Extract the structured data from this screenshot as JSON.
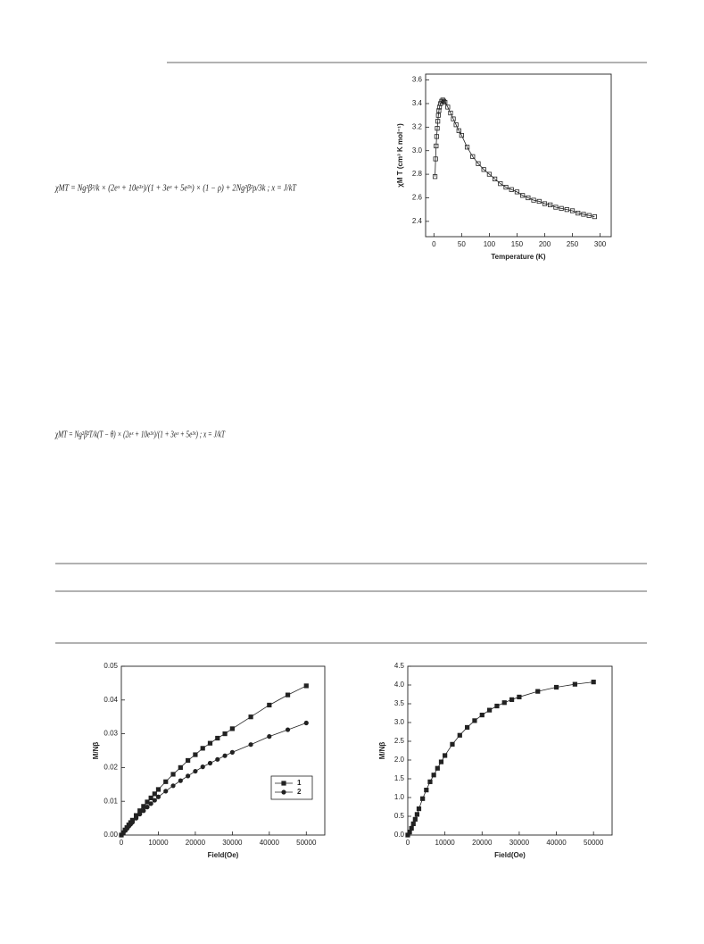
{
  "equations": [
    "χMT = Ng²β²/k × (2eˣ + 10e³ˣ)/(1 + 3eˣ + 5e³ˣ) × (1 − ρ) + 2Ng²β²ρ/3k ; x = J/kT",
    "χMT = Ng²β²T/k(T − θ) × (2eˣ + 10e³ˣ)/(1 + 3eˣ + 5e³ˣ) ; x = J/kT"
  ],
  "chart_data": [
    {
      "type": "scatter",
      "x_label": "Temperature (K)",
      "y_label": "χM T (cm³ K mol⁻¹)",
      "x": [
        2,
        3,
        4,
        5,
        6,
        7,
        8,
        9,
        10,
        12,
        14,
        16,
        18,
        20,
        25,
        30,
        35,
        40,
        45,
        50,
        60,
        70,
        80,
        90,
        100,
        110,
        120,
        130,
        140,
        150,
        160,
        170,
        180,
        190,
        200,
        210,
        220,
        230,
        240,
        250,
        260,
        270,
        280,
        290
      ],
      "series": [
        {
          "color": "#222222",
          "marker": "square",
          "marker_fill": "none",
          "line": true,
          "values": [
            2.78,
            2.93,
            3.04,
            3.12,
            3.19,
            3.25,
            3.3,
            3.34,
            3.37,
            3.4,
            3.42,
            3.43,
            3.42,
            3.41,
            3.37,
            3.32,
            3.27,
            3.22,
            3.17,
            3.13,
            3.03,
            2.95,
            2.89,
            2.84,
            2.8,
            2.76,
            2.72,
            2.69,
            2.67,
            2.65,
            2.62,
            2.6,
            2.58,
            2.57,
            2.55,
            2.54,
            2.52,
            2.51,
            2.5,
            2.49,
            2.47,
            2.46,
            2.45,
            2.44
          ]
        }
      ],
      "xlim": [
        -15,
        320
      ],
      "xticks": [
        0,
        50,
        100,
        150,
        200,
        250,
        300
      ],
      "ylim": [
        2.27,
        3.65
      ],
      "yticks": [
        2.4,
        2.6,
        2.8,
        {
          "value": 3,
          "label": "3.0"
        },
        3.2,
        3.4,
        3.6
      ]
    },
    {
      "type": "line",
      "x_label": "Field(Oe)",
      "y_label": "M/Nβ",
      "legend": "lower right",
      "x": [
        0,
        500,
        1000,
        1500,
        2000,
        2500,
        3000,
        4000,
        5000,
        6000,
        7000,
        8000,
        9000,
        10000,
        12000,
        14000,
        16000,
        18000,
        20000,
        22000,
        24000,
        26000,
        28000,
        30000,
        35000,
        40000,
        45000,
        50000
      ],
      "series": [
        {
          "name": "1",
          "color": "#222222",
          "marker": "square",
          "values": [
            0,
            0.0007,
            0.0015,
            0.0022,
            0.003,
            0.0037,
            0.0044,
            0.0058,
            0.0072,
            0.0085,
            0.0098,
            0.011,
            0.0122,
            0.0135,
            0.0158,
            0.018,
            0.02,
            0.0221,
            0.0238,
            0.0257,
            0.0272,
            0.0287,
            0.03,
            0.0315,
            0.035,
            0.0385,
            0.0415,
            0.0442
          ]
        },
        {
          "name": "2",
          "color": "#222222",
          "marker": "circle",
          "values": [
            0,
            0.0006,
            0.0013,
            0.0019,
            0.0026,
            0.0032,
            0.0038,
            0.005,
            0.0062,
            0.0072,
            0.0083,
            0.0093,
            0.0103,
            0.0113,
            0.013,
            0.0146,
            0.0161,
            0.0175,
            0.0189,
            0.0202,
            0.0213,
            0.0224,
            0.0235,
            0.0245,
            0.0268,
            0.0292,
            0.0312,
            0.0332
          ]
        }
      ],
      "xlim": [
        0,
        55000
      ],
      "xticks": [
        0,
        10000,
        20000,
        30000,
        40000,
        50000
      ],
      "ylim": [
        0,
        0.05
      ],
      "yticks": [
        {
          "value": 0,
          "label": "0.00"
        },
        0.01,
        0.02,
        0.03,
        0.04,
        0.05
      ]
    },
    {
      "type": "line",
      "x_label": "Field(Oe)",
      "y_label": "M/Nβ",
      "x": [
        0,
        500,
        1000,
        1500,
        2000,
        2500,
        3000,
        4000,
        5000,
        6000,
        7000,
        8000,
        9000,
        10000,
        12000,
        14000,
        16000,
        18000,
        20000,
        22000,
        24000,
        26000,
        28000,
        30000,
        35000,
        40000,
        45000,
        50000
      ],
      "series": [
        {
          "color": "#222222",
          "marker": "square",
          "values": [
            0,
            0.08,
            0.18,
            0.3,
            0.42,
            0.55,
            0.7,
            0.97,
            1.2,
            1.42,
            1.6,
            1.78,
            1.95,
            2.12,
            2.42,
            2.66,
            2.87,
            3.05,
            3.2,
            3.33,
            3.44,
            3.53,
            3.61,
            3.68,
            3.83,
            3.94,
            4.02,
            4.08
          ]
        }
      ],
      "xlim": [
        0,
        55000
      ],
      "xticks": [
        0,
        10000,
        20000,
        30000,
        40000,
        50000
      ],
      "ylim": [
        0,
        4.5
      ],
      "yticks": [
        {
          "value": 0,
          "label": "0.0"
        },
        0.5,
        {
          "value": 1,
          "label": "1.0"
        },
        1.5,
        {
          "value": 2,
          "label": "2.0"
        },
        2.5,
        {
          "value": 3,
          "label": "3.0"
        },
        3.5,
        {
          "value": 4,
          "label": "4.0"
        },
        4.5
      ]
    }
  ]
}
